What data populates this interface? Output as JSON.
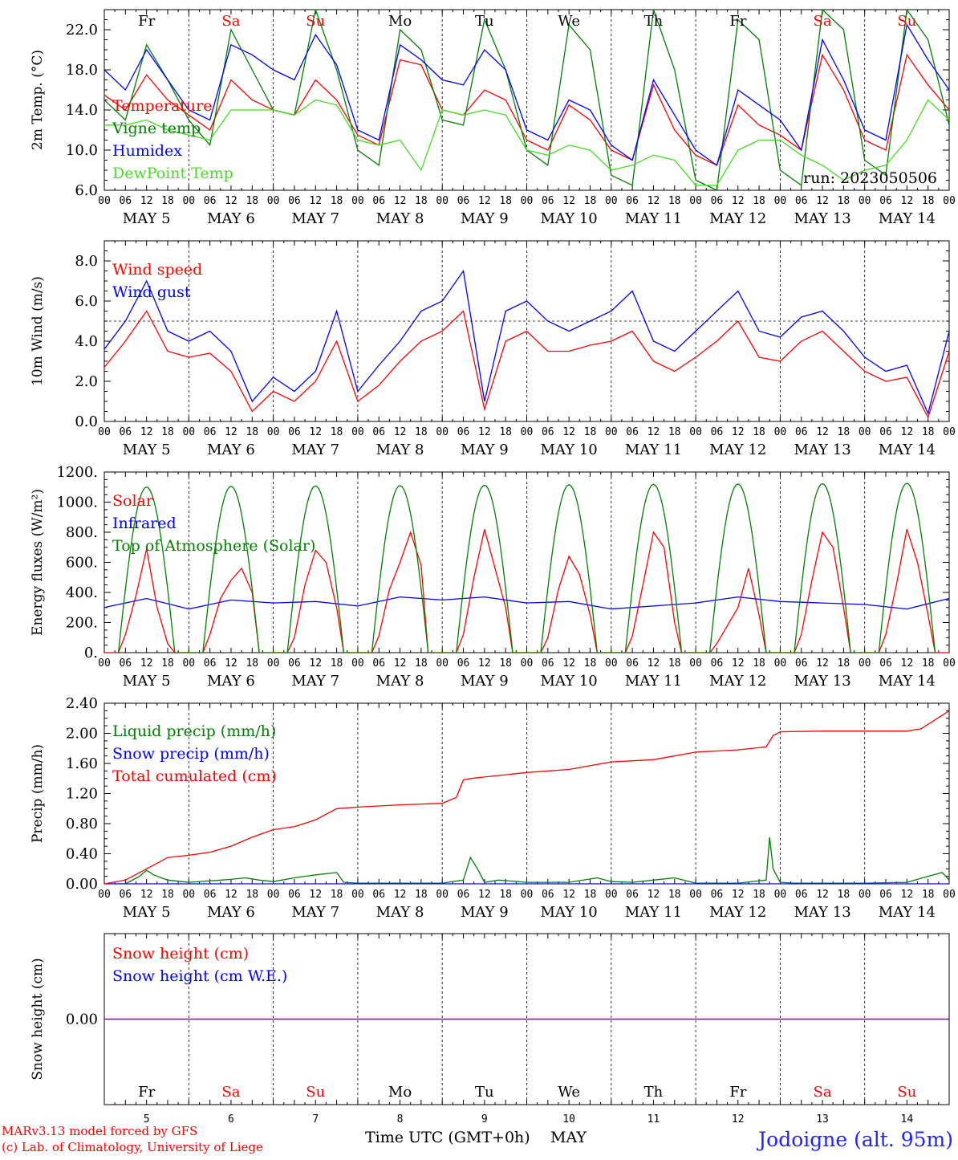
{
  "colors": {
    "red": "#ff0000",
    "green": "#008000",
    "blue": "#0000ff",
    "lightgreen": "#44dd22",
    "purple": "#800080",
    "weekend": "#ff0000",
    "weekday": "#000000"
  },
  "days": {
    "weekday_labels": [
      "Fr",
      "Sa",
      "Su",
      "Mo",
      "Tu",
      "We",
      "Th",
      "Fr",
      "Sa",
      "Su"
    ],
    "weekend": [
      false,
      true,
      true,
      false,
      false,
      false,
      false,
      false,
      true,
      true
    ],
    "date_labels": [
      "MAY  5",
      "MAY  6",
      "MAY  7",
      "MAY  8",
      "MAY  9",
      "MAY 10",
      "MAY 11",
      "MAY 12",
      "MAY 13",
      "MAY 14"
    ],
    "day_numbers": [
      "5",
      "6",
      "7",
      "8",
      "9",
      "10",
      "11",
      "12",
      "13",
      "14"
    ],
    "hour_labels": [
      "00",
      "06",
      "12",
      "18"
    ],
    "last_hour": "00"
  },
  "chart_data": [
    {
      "type": "line",
      "ylabel": "2m Temp. (°C)",
      "ylim": [
        6,
        24
      ],
      "yticks": [
        "6.0",
        "10.0",
        "14.0",
        "18.0",
        "22.0"
      ],
      "ytick_values": [
        6,
        10,
        14,
        18,
        22
      ],
      "annotation": "run: 2023050506",
      "x_unit": "hours since May 5 00 UTC",
      "series": [
        {
          "name": "Temperature",
          "color": "red",
          "x": [
            0,
            6,
            12,
            18,
            24,
            30,
            36,
            42,
            48,
            54,
            60,
            66,
            72,
            78,
            84,
            90,
            96,
            102,
            108,
            114,
            120,
            126,
            132,
            138,
            144,
            150,
            156,
            162,
            168,
            174,
            180,
            186,
            192,
            198,
            204,
            210,
            216,
            222,
            228,
            234,
            240
          ],
          "y": [
            15.5,
            14,
            17.5,
            15,
            13.5,
            12,
            17,
            15,
            14,
            13.5,
            17,
            15,
            11.5,
            10.5,
            19,
            18.5,
            14,
            13.5,
            16,
            15,
            11,
            10,
            14.5,
            13,
            10,
            9,
            16.5,
            12,
            9.5,
            8.5,
            14.5,
            12.5,
            11.5,
            10,
            19.5,
            16,
            11,
            10,
            19.5,
            16.5,
            14
          ]
        },
        {
          "name": "Vigne temp",
          "color": "green",
          "x": [
            0,
            6,
            12,
            18,
            24,
            30,
            36,
            42,
            48,
            54,
            60,
            66,
            72,
            78,
            84,
            90,
            96,
            102,
            108,
            114,
            120,
            126,
            132,
            138,
            144,
            150,
            156,
            162,
            168,
            174,
            180,
            186,
            192,
            198,
            204,
            210,
            216,
            222,
            228,
            234,
            240
          ],
          "y": [
            15,
            13,
            20.5,
            17,
            13,
            10.5,
            22,
            18,
            14,
            13.5,
            24,
            18,
            10,
            8.5,
            22,
            20,
            13,
            12.5,
            23,
            18,
            10,
            8.5,
            22.5,
            20,
            7.5,
            6.5,
            24,
            18,
            7,
            6,
            23,
            21,
            8,
            6.5,
            24,
            22,
            9,
            7.5,
            24,
            21,
            12.5
          ]
        },
        {
          "name": "Humidex",
          "color": "blue",
          "x": [
            0,
            6,
            12,
            18,
            24,
            30,
            36,
            42,
            48,
            54,
            60,
            66,
            72,
            78,
            84,
            90,
            96,
            102,
            108,
            114,
            120,
            126,
            132,
            138,
            144,
            150,
            156,
            162,
            168,
            174,
            180,
            186,
            192,
            198,
            204,
            210,
            216,
            222,
            228,
            234,
            240
          ],
          "y": [
            18,
            16,
            20,
            17,
            14,
            13,
            20.5,
            19.5,
            18,
            17,
            21.5,
            18.5,
            12,
            11,
            20.5,
            19,
            17,
            16.5,
            20,
            18,
            12,
            11,
            15,
            14,
            10.5,
            9,
            17,
            13.5,
            10,
            8.5,
            16,
            14.5,
            13,
            10,
            21,
            17,
            12,
            11,
            22.5,
            19,
            16
          ]
        },
        {
          "name": "DewPoint Temp",
          "color": "lightgreen",
          "x": [
            0,
            6,
            12,
            18,
            24,
            30,
            36,
            42,
            48,
            54,
            60,
            66,
            72,
            78,
            84,
            90,
            96,
            102,
            108,
            114,
            120,
            126,
            132,
            138,
            144,
            150,
            156,
            162,
            168,
            174,
            180,
            186,
            192,
            198,
            204,
            210,
            216,
            222,
            228,
            234,
            240
          ],
          "y": [
            12.5,
            12.5,
            13,
            12,
            11.5,
            11,
            14,
            14,
            14,
            13.5,
            15,
            14.5,
            11,
            10.5,
            11,
            8,
            14,
            13.5,
            14,
            13.5,
            10,
            9.5,
            10.5,
            10,
            8,
            8.5,
            9.5,
            9,
            6.5,
            6.5,
            10,
            11,
            11,
            9.5,
            8.5,
            7,
            8,
            8.5,
            11,
            15,
            13
          ]
        }
      ]
    },
    {
      "type": "line",
      "ylabel": "10m Wind (m/s)",
      "ylim": [
        0,
        9
      ],
      "yticks": [
        "0.0",
        "2.0",
        "4.0",
        "6.0",
        "8.0"
      ],
      "ytick_values": [
        0,
        2,
        4,
        6,
        8
      ],
      "ref_line": 5,
      "x_unit": "hours since May 5 00 UTC",
      "series": [
        {
          "name": "Wind speed",
          "color": "red",
          "x": [
            0,
            6,
            12,
            18,
            24,
            30,
            36,
            42,
            48,
            54,
            60,
            66,
            72,
            78,
            84,
            90,
            96,
            102,
            108,
            114,
            120,
            126,
            132,
            138,
            144,
            150,
            156,
            162,
            168,
            174,
            180,
            186,
            192,
            198,
            204,
            210,
            216,
            222,
            228,
            234,
            240
          ],
          "y": [
            2.7,
            4,
            5.5,
            3.5,
            3.2,
            3.4,
            2.5,
            0.5,
            1.5,
            1,
            2,
            4,
            1,
            1.8,
            3,
            4,
            4.5,
            5.5,
            0.6,
            4,
            4.5,
            3.5,
            3.5,
            3.8,
            4,
            4.5,
            3,
            2.5,
            3.2,
            4,
            5,
            3.2,
            3,
            4,
            4.5,
            3.5,
            2.5,
            2,
            2.2,
            0.2,
            3.5
          ]
        },
        {
          "name": "Wind gust",
          "color": "blue",
          "x": [
            0,
            6,
            12,
            18,
            24,
            30,
            36,
            42,
            48,
            54,
            60,
            66,
            72,
            78,
            84,
            90,
            96,
            102,
            108,
            114,
            120,
            126,
            132,
            138,
            144,
            150,
            156,
            162,
            168,
            174,
            180,
            186,
            192,
            198,
            204,
            210,
            216,
            222,
            228,
            234,
            240
          ],
          "y": [
            3.6,
            5,
            7,
            4.5,
            4,
            4.5,
            3.5,
            1,
            2.2,
            1.5,
            2.5,
            5.5,
            1.5,
            2.8,
            4,
            5.5,
            6,
            7.5,
            1,
            5.5,
            6,
            5,
            4.5,
            5,
            5.5,
            6.5,
            4,
            3.5,
            4.5,
            5.5,
            6.5,
            4.5,
            4.2,
            5.2,
            5.5,
            4.5,
            3.2,
            2.5,
            2.8,
            0.4,
            4.5
          ]
        }
      ]
    },
    {
      "type": "line",
      "ylabel": "Energy fluxes (W/m²)",
      "ylim": [
        0,
        1200
      ],
      "yticks": [
        "0.",
        "200.",
        "400.",
        "600.",
        "800.",
        "1000.",
        "1200."
      ],
      "ytick_values": [
        0,
        200,
        400,
        600,
        800,
        1000,
        1200
      ],
      "x_unit": "hours since May 5 00 UTC",
      "series": [
        {
          "name": "Solar",
          "color": "red",
          "x": [
            0,
            4,
            6,
            9,
            12,
            15,
            18,
            20,
            24,
            28,
            30,
            33,
            36,
            39,
            42,
            44,
            48,
            52,
            54,
            57,
            60,
            63,
            66,
            68,
            72,
            76,
            78,
            81,
            84,
            87,
            90,
            92,
            96,
            100,
            102,
            105,
            108,
            111,
            114,
            116,
            120,
            124,
            126,
            129,
            132,
            135,
            138,
            140,
            144,
            148,
            150,
            153,
            156,
            159,
            162,
            164,
            168,
            172,
            174,
            177,
            180,
            183,
            186,
            188,
            192,
            196,
            198,
            201,
            204,
            207,
            210,
            212,
            216,
            220,
            222,
            225,
            228,
            231,
            234,
            236,
            240
          ],
          "y": [
            0,
            0,
            120,
            380,
            690,
            300,
            60,
            0,
            0,
            0,
            120,
            360,
            480,
            560,
            400,
            0,
            0,
            0,
            100,
            450,
            680,
            600,
            300,
            0,
            0,
            0,
            110,
            420,
            600,
            800,
            580,
            0,
            0,
            0,
            120,
            500,
            820,
            560,
            300,
            0,
            0,
            0,
            100,
            420,
            640,
            520,
            250,
            0,
            0,
            0,
            110,
            450,
            800,
            700,
            200,
            0,
            0,
            0,
            60,
            180,
            300,
            560,
            250,
            0,
            0,
            0,
            120,
            480,
            800,
            700,
            300,
            0,
            0,
            0,
            120,
            450,
            820,
            600,
            250,
            0,
            0
          ]
        },
        {
          "name": "Infrared",
          "color": "blue",
          "x": [
            0,
            12,
            24,
            36,
            48,
            60,
            72,
            84,
            96,
            108,
            120,
            132,
            144,
            156,
            168,
            180,
            192,
            204,
            216,
            228,
            240
          ],
          "y": [
            300,
            360,
            290,
            350,
            330,
            340,
            310,
            370,
            350,
            370,
            330,
            340,
            290,
            310,
            330,
            370,
            340,
            330,
            320,
            290,
            360
          ]
        },
        {
          "name": "Top of Atmosphere (Solar)",
          "color": "green",
          "x": "computed",
          "peak": [
            1100,
            1105,
            1108,
            1110,
            1112,
            1115,
            1118,
            1120,
            1122,
            1125
          ]
        }
      ]
    },
    {
      "type": "line",
      "ylabel": "Precip (mm/h)",
      "ylim": [
        0,
        2.4
      ],
      "yticks": [
        "0.00",
        "0.40",
        "0.80",
        "1.20",
        "1.60",
        "2.00",
        "2.40"
      ],
      "ytick_values": [
        0,
        0.4,
        0.8,
        1.2,
        1.6,
        2,
        2.4
      ],
      "x_unit": "hours since May 5 00 UTC",
      "series": [
        {
          "name": "Liquid precip (mm/h)",
          "color": "green",
          "x": [
            0,
            6,
            10,
            12,
            14,
            18,
            22,
            24,
            30,
            36,
            40,
            44,
            48,
            54,
            60,
            66,
            68,
            72,
            84,
            96,
            102,
            104,
            106,
            108,
            112,
            120,
            132,
            140,
            144,
            150,
            156,
            162,
            168,
            180,
            188,
            189,
            190,
            192,
            196,
            204,
            216,
            228,
            234,
            238,
            240
          ],
          "y": [
            0,
            0,
            0.1,
            0.18,
            0.12,
            0.05,
            0.03,
            0.02,
            0.04,
            0.06,
            0.08,
            0.05,
            0.03,
            0.08,
            0.12,
            0.15,
            0.02,
            0.01,
            0.01,
            0.01,
            0.05,
            0.35,
            0.2,
            0.02,
            0.05,
            0.02,
            0.02,
            0.08,
            0.03,
            0.02,
            0.05,
            0.08,
            0.01,
            0.01,
            0.05,
            0.62,
            0.2,
            0.02,
            0.01,
            0.01,
            0.01,
            0.02,
            0.1,
            0.15,
            0.05
          ]
        },
        {
          "name": "Snow precip (mm/h)",
          "color": "blue",
          "x": [
            0,
            240
          ],
          "y": [
            0,
            0
          ]
        },
        {
          "name": "Total cumulated (cm)",
          "color": "red",
          "x": [
            0,
            6,
            12,
            18,
            24,
            30,
            36,
            42,
            48,
            54,
            60,
            66,
            72,
            84,
            96,
            100,
            102,
            104,
            108,
            120,
            132,
            144,
            156,
            168,
            180,
            188,
            190,
            192,
            204,
            216,
            228,
            232,
            240
          ],
          "y": [
            0,
            0.05,
            0.2,
            0.35,
            0.38,
            0.42,
            0.5,
            0.62,
            0.72,
            0.76,
            0.85,
            1.0,
            1.02,
            1.05,
            1.07,
            1.15,
            1.38,
            1.4,
            1.42,
            1.48,
            1.52,
            1.62,
            1.65,
            1.75,
            1.78,
            1.82,
            1.97,
            2.02,
            2.03,
            2.03,
            2.03,
            2.06,
            2.3
          ]
        }
      ]
    },
    {
      "type": "line",
      "ylabel": "Snow height (cm)",
      "ylim": [
        -1,
        1
      ],
      "yticks": [
        "0.00"
      ],
      "ytick_values": [
        0
      ],
      "x_unit": "hours since May 5 00 UTC",
      "series": [
        {
          "name": "Snow height (cm)",
          "color": "red",
          "x": [
            0,
            240
          ],
          "y": [
            0,
            0
          ]
        },
        {
          "name": "Snow height (cm W.E.)",
          "color": "blue",
          "x": [
            0,
            240
          ],
          "y": [
            0,
            0
          ]
        }
      ]
    }
  ],
  "footer": {
    "model": "MARv3.13 model forced by GFS",
    "copyright": "(c) Lab. of Climatology, University of Liege",
    "xlabel": "Time UTC (GMT+0h)",
    "month": "MAY",
    "location": "Jodoigne (alt. 95m)"
  }
}
